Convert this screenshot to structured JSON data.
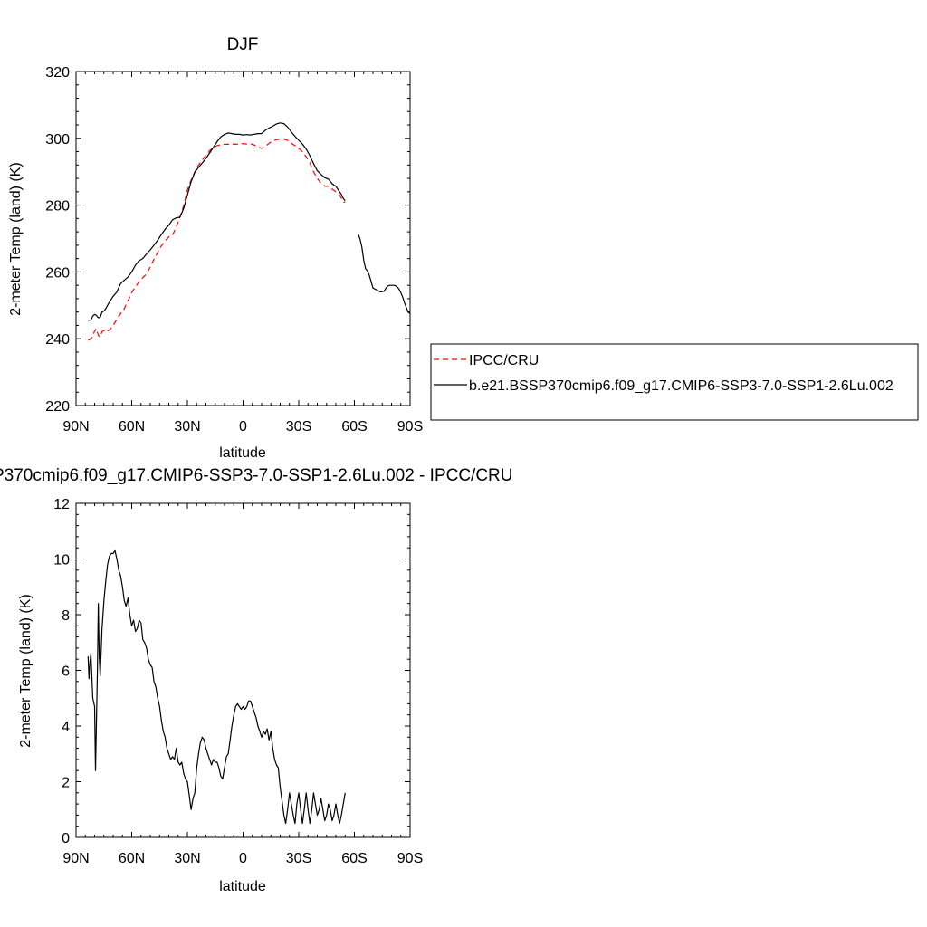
{
  "chart_data": [
    {
      "type": "line",
      "title": "DJF",
      "xlabel": "latitude",
      "ylabel": "2-meter Temp (land) (K)",
      "xlim": [
        90,
        -90
      ],
      "ylim": [
        220,
        320
      ],
      "xticks": [
        {
          "value": 90,
          "label": "90N"
        },
        {
          "value": 60,
          "label": "60N"
        },
        {
          "value": 30,
          "label": "30N"
        },
        {
          "value": 0,
          "label": "0"
        },
        {
          "value": -30,
          "label": "30S"
        },
        {
          "value": -60,
          "label": "60S"
        },
        {
          "value": -90,
          "label": "90S"
        }
      ],
      "yticks": [
        220,
        240,
        260,
        280,
        300,
        320
      ],
      "legend_position": "right",
      "series": [
        {
          "name": "IPCC/CRU",
          "color": "#ff0000",
          "dash": "dashed",
          "segments": [
            {
              "x": [
                83.5,
                82,
                81,
                80,
                79,
                78,
                77,
                76,
                75,
                74,
                72,
                70,
                68,
                66,
                64,
                62,
                60,
                58,
                56,
                54,
                52,
                50,
                48,
                46,
                44,
                42,
                40,
                38,
                36,
                34,
                32,
                30,
                28,
                26,
                24,
                22,
                20,
                18,
                16,
                14,
                12,
                10,
                8,
                6,
                4,
                2,
                0,
                -2,
                -4,
                -6,
                -8,
                -10,
                -12,
                -14,
                -16,
                -18,
                -20,
                -22,
                -24,
                -26,
                -28,
                -30,
                -32,
                -34,
                -36,
                -38,
                -40,
                -42,
                -44,
                -46,
                -48,
                -50,
                -52,
                -53,
                -54,
                -55
              ],
              "y": [
                239.5,
                240.0,
                240.8,
                242.3,
                243.0,
                241.0,
                240.6,
                242.1,
                242.5,
                242.0,
                242.6,
                244.0,
                245.8,
                247.5,
                249.0,
                251.4,
                253.8,
                255.6,
                257.0,
                258.3,
                259.4,
                261.5,
                263.8,
                265.8,
                267.8,
                269.3,
                270.5,
                271.0,
                273.5,
                276.4,
                279.8,
                284.5,
                287.5,
                290.0,
                292.0,
                293.5,
                295.0,
                296.3,
                297.3,
                297.8,
                298.1,
                298.2,
                298.2,
                298.3,
                298.2,
                298.3,
                298.4,
                298.3,
                298.4,
                298.0,
                297.4,
                297.0,
                297.5,
                298.5,
                299.2,
                299.6,
                299.8,
                299.8,
                299.4,
                298.5,
                297.8,
                297.0,
                296.0,
                294.5,
                292.6,
                290.0,
                288.0,
                286.5,
                285.7,
                285.6,
                284.8,
                284.0,
                283.0,
                282.1,
                281.0,
                280.8
              ]
            }
          ]
        },
        {
          "name": "b.e21.BSSP370cmip6.f09_g17.CMIP6-SSP3-7.0-SSP1-2.6Lu.002",
          "color": "#000000",
          "dash": "solid",
          "segments": [
            {
              "x": [
                83.5,
                82,
                81,
                80,
                79,
                78,
                77,
                76,
                75,
                74,
                72,
                70,
                68,
                66,
                64,
                62,
                60,
                58,
                56,
                54,
                52,
                50,
                48,
                46,
                44,
                42,
                40,
                38,
                36,
                34,
                32,
                30,
                28,
                26,
                24,
                22,
                20,
                18,
                16,
                14,
                12,
                10,
                8,
                6,
                4,
                2,
                0,
                -2,
                -4,
                -6,
                -8,
                -10,
                -12,
                -14,
                -16,
                -18,
                -20,
                -22,
                -24,
                -26,
                -28,
                -30,
                -32,
                -34,
                -36,
                -38,
                -40,
                -42,
                -44,
                -46,
                -48,
                -50,
                -52,
                -53,
                -54,
                -55
              ],
              "y": [
                245.5,
                245.6,
                246.8,
                247.3,
                247.0,
                246.3,
                246.4,
                248.0,
                248.3,
                249.0,
                251.0,
                252.7,
                254.0,
                256.5,
                257.5,
                258.5,
                260.0,
                262.0,
                263.4,
                264.0,
                265.4,
                266.6,
                268.0,
                269.5,
                271.2,
                272.8,
                274.0,
                275.6,
                276.2,
                276.4,
                279.0,
                283.0,
                287.0,
                289.8,
                291.3,
                292.6,
                294.0,
                295.6,
                297.3,
                299.0,
                300.4,
                301.2,
                301.6,
                301.4,
                301.2,
                301.2,
                301.0,
                301.1,
                301.0,
                301.2,
                301.4,
                301.4,
                302.4,
                303.1,
                303.6,
                304.3,
                304.6,
                304.4,
                303.4,
                301.9,
                300.6,
                299.4,
                298.3,
                296.8,
                294.8,
                292.4,
                290.3,
                289.2,
                288.2,
                287.8,
                286.4,
                285.6,
                284.0,
                283.2,
                282.0,
                281.3
              ]
            },
            {
              "x": [
                -62,
                -63,
                -64,
                -65,
                -66,
                -67,
                -68,
                -70,
                -72,
                -74,
                -76,
                -77,
                -78,
                -79,
                -80,
                -81,
                -82,
                -83,
                -84,
                -85,
                -86,
                -87,
                -88,
                -89,
                -90
              ],
              "y": [
                271.3,
                270.0,
                267.5,
                263.5,
                261.0,
                260.3,
                259.0,
                255.2,
                254.6,
                254.0,
                254.2,
                255.2,
                255.8,
                256.0,
                256.0,
                256.0,
                255.9,
                255.5,
                254.9,
                253.8,
                252.5,
                250.8,
                249.3,
                248.0,
                247.5
              ]
            }
          ]
        }
      ]
    },
    {
      "type": "line",
      "title": "P370cmip6.f09_g17.CMIP6-SSP3-7.0-SSP1-2.6Lu.002 - IPCC/CRU",
      "xlabel": "latitude",
      "ylabel": "2-meter Temp (land) (K)",
      "xlim": [
        90,
        -90
      ],
      "ylim": [
        0,
        12
      ],
      "xticks": [
        {
          "value": 90,
          "label": "90N"
        },
        {
          "value": 60,
          "label": "60N"
        },
        {
          "value": 30,
          "label": "30N"
        },
        {
          "value": 0,
          "label": "0"
        },
        {
          "value": -30,
          "label": "30S"
        },
        {
          "value": -60,
          "label": "60S"
        },
        {
          "value": -90,
          "label": "90S"
        }
      ],
      "yticks": [
        0,
        2,
        4,
        6,
        8,
        10,
        12
      ],
      "series": [
        {
          "color": "#000000",
          "dash": "solid",
          "segments": [
            {
              "x": [
                83.5,
                83,
                82.5,
                82,
                81,
                80,
                79.5,
                78.5,
                78,
                77.5,
                77,
                76,
                75,
                74,
                73,
                72,
                71,
                70,
                69,
                68,
                67,
                66,
                65,
                64,
                63,
                62,
                61,
                60,
                59,
                58,
                57,
                56,
                55,
                54,
                53,
                52,
                51,
                50,
                49,
                48,
                47,
                46,
                45,
                44,
                43,
                42,
                41,
                40,
                39,
                38,
                37,
                36,
                35,
                34,
                33,
                32,
                31,
                30,
                29,
                28,
                27,
                26,
                25,
                24,
                23,
                22,
                21,
                20,
                19,
                18,
                17,
                16,
                15,
                14,
                13,
                12,
                11,
                10,
                9,
                8,
                7,
                6,
                5,
                4,
                3,
                2,
                1,
                0,
                -1,
                -2,
                -3,
                -4,
                -5,
                -6,
                -7,
                -8,
                -9,
                -10,
                -11,
                -12,
                -13,
                -14,
                -15,
                -16,
                -17,
                -18,
                -19,
                -20,
                -21,
                -22,
                -23,
                -24,
                -25,
                -26,
                -27,
                -28,
                -29,
                -30,
                -31,
                -32,
                -33,
                -34,
                -35,
                -36,
                -37,
                -38,
                -39,
                -40,
                -41,
                -42,
                -43,
                -44,
                -45,
                -46,
                -47,
                -48,
                -49,
                -50,
                -51,
                -52,
                -53,
                -54,
                -55
              ],
              "y": [
                6.5,
                5.7,
                6.3,
                6.6,
                5.0,
                4.7,
                2.4,
                6.0,
                8.4,
                6.5,
                5.8,
                7.5,
                8.5,
                9.2,
                9.8,
                10.1,
                10.2,
                10.2,
                10.3,
                10.0,
                9.6,
                9.4,
                9.0,
                8.5,
                8.3,
                8.6,
                8.0,
                7.6,
                7.8,
                7.4,
                7.5,
                7.8,
                7.7,
                7.1,
                7.0,
                6.8,
                6.4,
                6.2,
                6.1,
                5.6,
                5.4,
                5.0,
                4.7,
                4.2,
                3.8,
                3.6,
                3.2,
                3.0,
                2.8,
                2.9,
                2.8,
                3.2,
                2.7,
                2.6,
                2.7,
                2.3,
                2.1,
                2.0,
                1.5,
                1.0,
                1.4,
                1.6,
                2.5,
                3.0,
                3.4,
                3.6,
                3.5,
                3.2,
                3.0,
                2.8,
                2.6,
                2.8,
                2.7,
                2.7,
                2.5,
                2.2,
                2.1,
                2.5,
                2.9,
                3.0,
                3.5,
                4.0,
                4.4,
                4.7,
                4.8,
                4.7,
                4.6,
                4.7,
                4.6,
                4.7,
                4.9,
                4.9,
                4.7,
                4.5,
                4.3,
                4.0,
                3.8,
                3.6,
                3.8,
                3.7,
                3.9,
                3.5,
                3.8,
                3.2,
                2.8,
                2.6,
                2.5,
                1.8,
                1.3,
                0.8,
                0.5,
                1.0,
                1.6,
                1.2,
                0.8,
                0.5,
                1.2,
                1.6,
                1.0,
                0.5,
                1.0,
                1.6,
                1.0,
                0.5,
                1.0,
                1.6,
                1.2,
                0.8,
                1.0,
                1.4,
                1.0,
                0.6,
                0.8,
                1.2,
                1.0,
                0.6,
                0.8,
                1.2,
                0.8,
                0.5,
                0.8,
                1.2,
                1.6
              ]
            }
          ]
        }
      ]
    }
  ]
}
